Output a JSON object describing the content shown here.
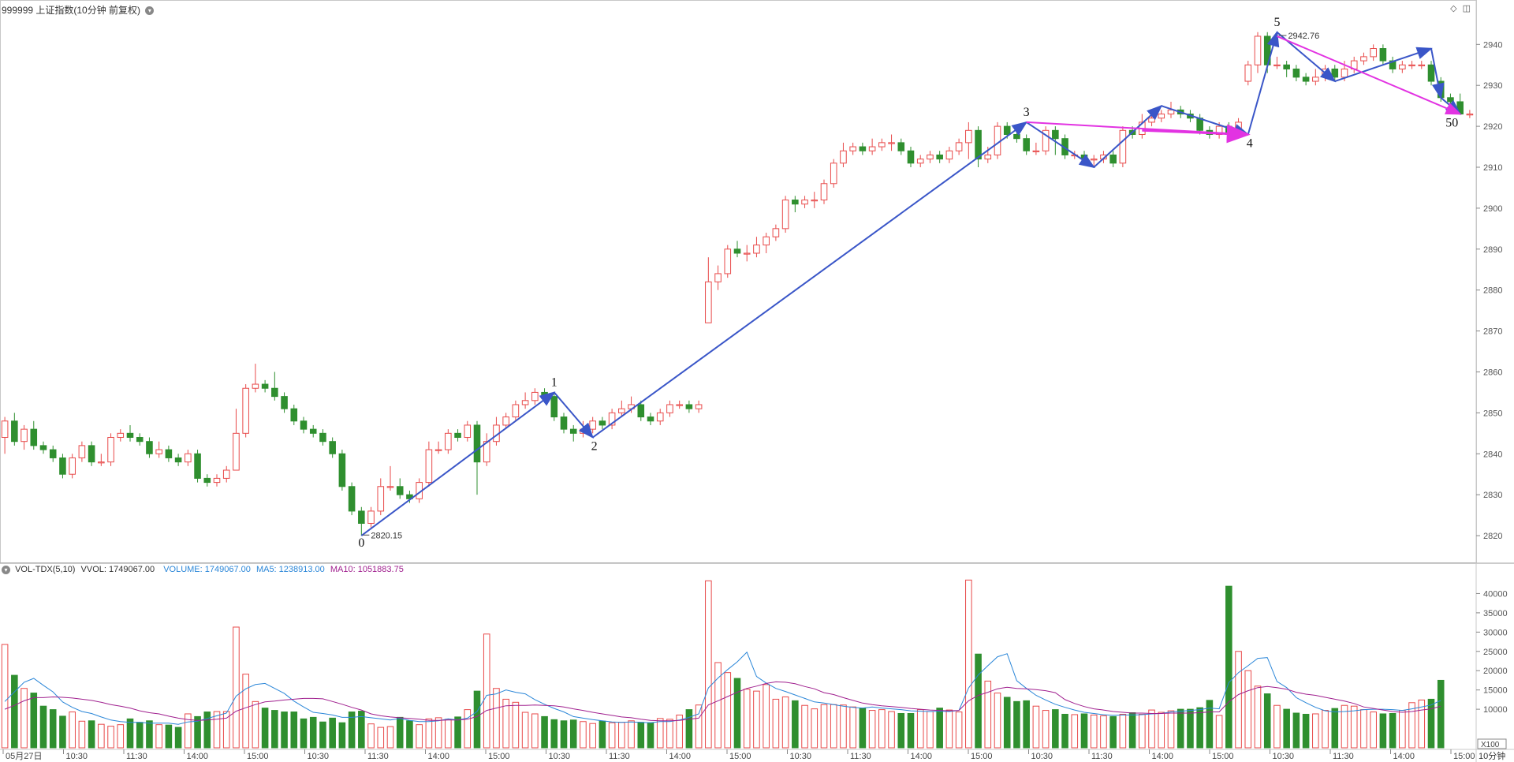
{
  "header": {
    "title": "999999 上证指数(10分钟 前复权)",
    "vol_indicator": "VOL-TDX(5,10)",
    "vvol": "VVOL: 1749067.00",
    "volume": "VOLUME: 1749067.00",
    "ma5": "MA5: 1238913.00",
    "ma10": "MA10: 1051883.75"
  },
  "colors": {
    "up": "#e84a4a",
    "down": "#2f8f2f",
    "wave_arrow": "#3a56c8",
    "trend_arrow": "#e233e2",
    "ma5": "#2a86d8",
    "ma10": "#a0208f",
    "grid": "#d8d8d8"
  },
  "icons": [
    "diamond-icon",
    "panel-toggle-icon",
    "dropdown-icon"
  ],
  "chart_data": {
    "type": "candlestick",
    "period": "10分钟",
    "price_axis": {
      "ticks": [
        2820,
        2830,
        2840,
        2850,
        2860,
        2870,
        2880,
        2890,
        2900,
        2910,
        2920,
        2930,
        2940
      ],
      "range": [
        2815,
        2947
      ]
    },
    "volume_axis": {
      "ticks": [
        10000,
        15000,
        20000,
        25000,
        30000,
        35000,
        40000
      ],
      "unit": "X100",
      "range": [
        0,
        45000
      ]
    },
    "x_labels": [
      "05月27日",
      "10:30",
      "11:30",
      "14:00",
      "15:00",
      "10:30",
      "11:30",
      "14:00",
      "15:00",
      "10:30",
      "11:30",
      "14:00",
      "15:00",
      "10:30",
      "11:30",
      "14:00",
      "15:00",
      "10:30",
      "11:30",
      "14:00",
      "15:00",
      "10:30",
      "11:30",
      "14:00",
      "15:00"
    ],
    "period_label": "10分钟",
    "annotations": {
      "low_label": "2820.15",
      "high_label": "2942.76",
      "wave_labels": [
        "0",
        "1",
        "2",
        "3",
        "4",
        "5",
        "50"
      ]
    },
    "candles": [
      [
        2844,
        2848,
        2849,
        2840
      ],
      [
        2848,
        2843,
        2850,
        2842
      ],
      [
        2843,
        2846,
        2847,
        2841
      ],
      [
        2846,
        2842,
        2848,
        2841
      ],
      [
        2842,
        2841,
        2843,
        2840
      ],
      [
        2841,
        2839,
        2842,
        2838
      ],
      [
        2839,
        2835,
        2840,
        2834
      ],
      [
        2835,
        2839,
        2840,
        2834
      ],
      [
        2839,
        2842,
        2843,
        2838
      ],
      [
        2842,
        2838,
        2843,
        2837
      ],
      [
        2838,
        2838,
        2840,
        2837
      ],
      [
        2838,
        2844,
        2845,
        2837
      ],
      [
        2844,
        2845,
        2846,
        2843
      ],
      [
        2845,
        2844,
        2847,
        2843
      ],
      [
        2844,
        2843,
        2845,
        2842
      ],
      [
        2843,
        2840,
        2844,
        2839
      ],
      [
        2840,
        2841,
        2843,
        2839
      ],
      [
        2841,
        2839,
        2842,
        2838
      ],
      [
        2839,
        2838,
        2840,
        2837
      ],
      [
        2838,
        2840,
        2841,
        2837
      ],
      [
        2840,
        2834,
        2841,
        2833
      ],
      [
        2834,
        2833,
        2835,
        2832
      ],
      [
        2833,
        2834,
        2835,
        2832
      ],
      [
        2834,
        2836,
        2837,
        2833
      ],
      [
        2836,
        2845,
        2851,
        2836
      ],
      [
        2845,
        2856,
        2857,
        2844
      ],
      [
        2856,
        2857,
        2862,
        2855
      ],
      [
        2857,
        2856,
        2858,
        2855
      ],
      [
        2856,
        2854,
        2860,
        2853
      ],
      [
        2854,
        2851,
        2855,
        2850
      ],
      [
        2851,
        2848,
        2852,
        2847
      ],
      [
        2848,
        2846,
        2849,
        2845
      ],
      [
        2846,
        2845,
        2847,
        2844
      ],
      [
        2845,
        2843,
        2846,
        2842
      ],
      [
        2843,
        2840,
        2844,
        2839
      ],
      [
        2840,
        2832,
        2841,
        2831
      ],
      [
        2832,
        2826,
        2833,
        2825
      ],
      [
        2826,
        2823,
        2827,
        2820
      ],
      [
        2823,
        2826,
        2827,
        2822
      ],
      [
        2826,
        2832,
        2834,
        2825
      ],
      [
        2832,
        2832,
        2837,
        2831
      ],
      [
        2832,
        2830,
        2834,
        2829
      ],
      [
        2830,
        2829,
        2831,
        2828
      ],
      [
        2829,
        2833,
        2834,
        2828
      ],
      [
        2833,
        2841,
        2843,
        2832
      ],
      [
        2841,
        2841,
        2843,
        2840
      ],
      [
        2841,
        2845,
        2846,
        2840
      ],
      [
        2845,
        2844,
        2846,
        2843
      ],
      [
        2844,
        2847,
        2848,
        2843
      ],
      [
        2847,
        2838,
        2848,
        2830
      ],
      [
        2838,
        2843,
        2845,
        2837
      ],
      [
        2843,
        2847,
        2849,
        2842
      ],
      [
        2847,
        2849,
        2850,
        2846
      ],
      [
        2849,
        2852,
        2853,
        2848
      ],
      [
        2852,
        2853,
        2855,
        2851
      ],
      [
        2853,
        2855,
        2856,
        2852
      ],
      [
        2855,
        2854,
        2856,
        2853
      ],
      [
        2854,
        2849,
        2855,
        2848
      ],
      [
        2849,
        2846,
        2850,
        2845
      ],
      [
        2846,
        2845,
        2847,
        2843
      ],
      [
        2845,
        2846,
        2848,
        2844
      ],
      [
        2846,
        2848,
        2849,
        2845
      ],
      [
        2848,
        2847,
        2849,
        2846
      ],
      [
        2847,
        2850,
        2851,
        2846
      ],
      [
        2850,
        2851,
        2853,
        2849
      ],
      [
        2851,
        2852,
        2854,
        2850
      ],
      [
        2852,
        2849,
        2853,
        2848
      ],
      [
        2849,
        2848,
        2850,
        2847
      ],
      [
        2848,
        2850,
        2851,
        2847
      ],
      [
        2850,
        2852,
        2853,
        2849
      ],
      [
        2852,
        2852,
        2853,
        2851
      ],
      [
        2852,
        2851,
        2853,
        2850
      ],
      [
        2851,
        2852,
        2853,
        2850
      ],
      [
        2872,
        2882,
        2888,
        2872
      ],
      [
        2882,
        2884,
        2886,
        2880
      ],
      [
        2884,
        2890,
        2891,
        2883
      ],
      [
        2890,
        2889,
        2892,
        2888
      ],
      [
        2889,
        2889,
        2891,
        2887
      ],
      [
        2889,
        2891,
        2893,
        2888
      ],
      [
        2891,
        2893,
        2894,
        2889
      ],
      [
        2893,
        2895,
        2896,
        2892
      ],
      [
        2895,
        2902,
        2903,
        2894
      ],
      [
        2902,
        2901,
        2903,
        2899
      ],
      [
        2901,
        2902,
        2903,
        2900
      ],
      [
        2902,
        2902,
        2904,
        2900
      ],
      [
        2902,
        2906,
        2907,
        2901
      ],
      [
        2906,
        2911,
        2912,
        2905
      ],
      [
        2911,
        2914,
        2916,
        2910
      ],
      [
        2914,
        2915,
        2916,
        2913
      ],
      [
        2915,
        2914,
        2916,
        2913
      ],
      [
        2914,
        2915,
        2917,
        2913
      ],
      [
        2915,
        2916,
        2917,
        2914
      ],
      [
        2916,
        2916,
        2918,
        2914
      ],
      [
        2916,
        2914,
        2917,
        2913
      ],
      [
        2914,
        2911,
        2915,
        2910
      ],
      [
        2911,
        2912,
        2913,
        2910
      ],
      [
        2912,
        2913,
        2914,
        2911
      ],
      [
        2913,
        2912,
        2914,
        2911
      ],
      [
        2912,
        2914,
        2915,
        2911
      ],
      [
        2914,
        2916,
        2917,
        2913
      ],
      [
        2916,
        2919,
        2921,
        2912
      ],
      [
        2919,
        2912,
        2920,
        2910
      ],
      [
        2912,
        2913,
        2915,
        2911
      ],
      [
        2913,
        2920,
        2921,
        2912
      ],
      [
        2920,
        2918,
        2921,
        2917
      ],
      [
        2918,
        2917,
        2919,
        2916
      ],
      [
        2917,
        2914,
        2918,
        2913
      ],
      [
        2914,
        2914,
        2916,
        2913
      ],
      [
        2914,
        2919,
        2920,
        2913
      ],
      [
        2919,
        2917,
        2920,
        2913
      ],
      [
        2917,
        2913,
        2918,
        2912
      ],
      [
        2913,
        2913,
        2914,
        2912
      ],
      [
        2913,
        2912,
        2914,
        2911
      ],
      [
        2912,
        2912,
        2913,
        2910
      ],
      [
        2912,
        2913,
        2914,
        2911
      ],
      [
        2913,
        2911,
        2914,
        2910
      ],
      [
        2911,
        2919,
        2920,
        2910
      ],
      [
        2919,
        2918,
        2920,
        2917
      ],
      [
        2918,
        2921,
        2923,
        2917
      ],
      [
        2921,
        2922,
        2923,
        2920
      ],
      [
        2922,
        2923,
        2924,
        2921
      ],
      [
        2923,
        2924,
        2926,
        2922
      ],
      [
        2924,
        2923,
        2925,
        2922
      ],
      [
        2923,
        2922,
        2924,
        2921
      ],
      [
        2922,
        2919,
        2923,
        2918
      ],
      [
        2919,
        2918,
        2920,
        2917
      ],
      [
        2918,
        2920,
        2921,
        2917
      ],
      [
        2920,
        2918,
        2921,
        2917
      ],
      [
        2918,
        2921,
        2922,
        2917
      ],
      [
        2931,
        2935,
        2936,
        2930
      ],
      [
        2935,
        2942,
        2943,
        2933
      ],
      [
        2942,
        2935,
        2943,
        2933
      ],
      [
        2935,
        2935,
        2937,
        2934
      ],
      [
        2935,
        2934,
        2936,
        2932
      ],
      [
        2934,
        2932,
        2935,
        2931
      ],
      [
        2932,
        2931,
        2933,
        2930
      ],
      [
        2931,
        2932,
        2934,
        2930
      ],
      [
        2932,
        2934,
        2935,
        2931
      ],
      [
        2934,
        2932,
        2935,
        2931
      ],
      [
        2932,
        2934,
        2936,
        2931
      ],
      [
        2934,
        2936,
        2937,
        2933
      ],
      [
        2936,
        2937,
        2938,
        2935
      ],
      [
        2937,
        2939,
        2940,
        2936
      ],
      [
        2939,
        2936,
        2940,
        2935
      ],
      [
        2936,
        2934,
        2937,
        2933
      ],
      [
        2934,
        2935,
        2936,
        2933
      ],
      [
        2935,
        2935,
        2936,
        2934
      ],
      [
        2935,
        2935,
        2936,
        2934
      ],
      [
        2935,
        2931,
        2936,
        2930
      ],
      [
        2931,
        2927,
        2932,
        2926
      ],
      [
        2927,
        2926,
        2928,
        2925
      ],
      [
        2926,
        2923,
        2928,
        2923
      ],
      [
        2923,
        2923,
        2924,
        2922
      ]
    ],
    "volumes": [
      26800,
      18800,
      15400,
      14200,
      10800,
      9900,
      8200,
      9300,
      6900,
      7000,
      6100,
      5600,
      6000,
      7500,
      6600,
      7000,
      6000,
      5900,
      5300,
      8800,
      8100,
      9300,
      9400,
      9400,
      31300,
      19100,
      12000,
      10300,
      9700,
      9300,
      9300,
      7500,
      7900,
      6700,
      7700,
      6500,
      9300,
      9500,
      6200,
      5300,
      5500,
      7900,
      7000,
      6000,
      7500,
      7800,
      7400,
      8000,
      9900,
      14700,
      29500,
      15400,
      12600,
      11800,
      9200,
      8800,
      8100,
      7300,
      7000,
      7200,
      6800,
      6300,
      6900,
      6500,
      6600,
      7000,
      6600,
      6500,
      7600,
      7400,
      8500,
      9900,
      11100,
      43300,
      22100,
      19500,
      18000,
      15200,
      14700,
      16400,
      12600,
      13200,
      12200,
      11000,
      10100,
      11200,
      11200,
      11100,
      10600,
      10300,
      9700,
      9900,
      9400,
      8900,
      8900,
      9900,
      9400,
      10300,
      9800,
      9300,
      43500,
      24300,
      17300,
      14200,
      13100,
      12000,
      12200,
      10800,
      9700,
      9900,
      8700,
      8600,
      8800,
      8500,
      8300,
      8100,
      8700,
      9100,
      8700,
      9800,
      9200,
      9600,
      10000,
      10000,
      10400,
      12300,
      8400,
      41900,
      25000,
      20000,
      16000,
      14000,
      11000,
      10000,
      9000,
      8700,
      8800,
      9700,
      10200,
      11000,
      10800,
      9900,
      9300,
      8800,
      8900,
      9700,
      11700,
      12400,
      12600,
      17500
    ],
    "ma5": [
      12000,
      14500,
      17000,
      18000,
      16200,
      14500,
      11900,
      10500,
      9400,
      8900,
      8000,
      7200,
      6800,
      6600,
      6600,
      6400,
      6400,
      6400,
      6100,
      6700,
      6900,
      7600,
      8300,
      9000,
      13400,
      15300,
      16400,
      16700,
      15400,
      14100,
      12100,
      10600,
      9200,
      8900,
      8500,
      7900,
      7900,
      8100,
      7800,
      7500,
      7200,
      7600,
      7100,
      6800,
      6800,
      7000,
      7500,
      7200,
      7700,
      9400,
      13600,
      14000,
      15000,
      14400,
      14000,
      12500,
      11300,
      10200,
      9300,
      8100,
      7700,
      7300,
      7000,
      6700,
      6600,
      6700,
      6600,
      6500,
      6800,
      6800,
      7200,
      7900,
      8800,
      15500,
      18100,
      20300,
      22300,
      24800,
      18500,
      16800,
      15400,
      14600,
      13700,
      12800,
      11900,
      11600,
      11200,
      10800,
      10500,
      10300,
      10600,
      10300,
      10100,
      9900,
      9600,
      9500,
      9400,
      9500,
      9400,
      9700,
      15500,
      18900,
      21300,
      23600,
      24400,
      17400,
      15400,
      13600,
      12400,
      11300,
      10500,
      9800,
      9200,
      8900,
      8600,
      8400,
      8500,
      8500,
      8600,
      8800,
      8900,
      9300,
      9500,
      9700,
      9900,
      10300,
      10100,
      16900,
      19500,
      21300,
      23200,
      23400,
      17200,
      15600,
      13000,
      11700,
      10500,
      9600,
      9300,
      9400,
      9600,
      9900,
      10000,
      10000,
      9900,
      9700,
      10100,
      10600,
      11100,
      12300
    ],
    "ma10": [
      10000,
      11000,
      12200,
      13000,
      13000,
      13200,
      13100,
      12900,
      12600,
      12300,
      11800,
      11200,
      10800,
      10300,
      9600,
      9100,
      8800,
      8200,
      7700,
      7300,
      7100,
      7200,
      7400,
      7700,
      9500,
      10400,
      11200,
      11900,
      12100,
      12400,
      12600,
      12800,
      12800,
      12700,
      12000,
      11300,
      10500,
      9800,
      8800,
      8300,
      8000,
      7800,
      7600,
      7400,
      7100,
      7100,
      7200,
      7200,
      7400,
      8100,
      9700,
      10300,
      10900,
      11000,
      11000,
      11100,
      11000,
      10900,
      10600,
      10100,
      9700,
      9200,
      8800,
      8400,
      8000,
      7800,
      7400,
      7100,
      7000,
      7000,
      7100,
      7400,
      7700,
      11100,
      12200,
      13300,
      14400,
      15400,
      16000,
      16700,
      17100,
      17000,
      16600,
      15900,
      15300,
      14300,
      13800,
      13000,
      12300,
      11600,
      11200,
      10900,
      10700,
      10500,
      10200,
      10000,
      9800,
      9700,
      9600,
      9700,
      12200,
      13600,
      14400,
      15300,
      15700,
      15400,
      15300,
      15100,
      14800,
      14300,
      12500,
      11500,
      10700,
      10100,
      9800,
      9400,
      9200,
      9000,
      9000,
      8900,
      8900,
      9000,
      9000,
      9000,
      9100,
      9300,
      9300,
      11900,
      13800,
      14800,
      15600,
      15900,
      15600,
      15200,
      14400,
      13900,
      13600,
      13100,
      12600,
      12100,
      11500,
      10600,
      10200,
      9800,
      9400,
      9200,
      9400,
      9800,
      10100,
      10800
    ],
    "wave_points": [
      {
        "label": "0",
        "idx": 37,
        "price": 2820
      },
      {
        "label": "1",
        "idx": 57,
        "price": 2855
      },
      {
        "label": "2",
        "idx": 61,
        "price": 2844
      },
      {
        "label": "3",
        "idx": 106,
        "price": 2921
      },
      {
        "label": "4",
        "idx": 129,
        "price": 2918
      },
      {
        "label": "5",
        "idx": 132,
        "price": 2943
      },
      {
        "label": "50",
        "idx": 149,
        "price": 2923
      }
    ]
  }
}
